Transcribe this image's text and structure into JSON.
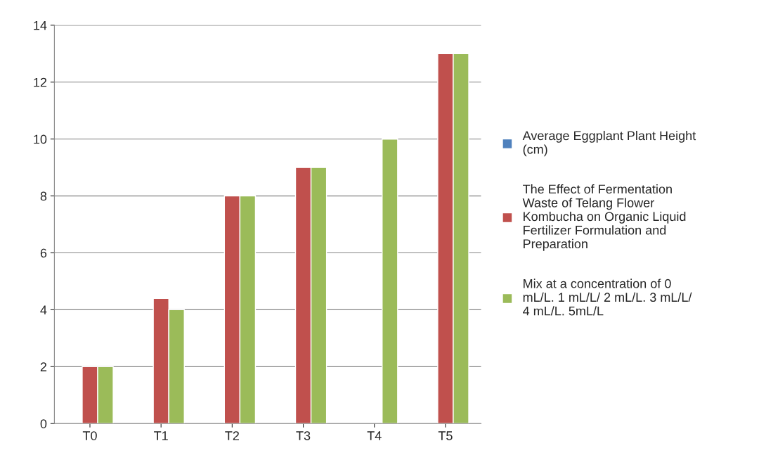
{
  "chart_data": {
    "type": "bar",
    "categories": [
      "T0",
      "T1",
      "T2",
      "T3",
      "T4",
      "T5"
    ],
    "series": [
      {
        "name": "Average Eggplant Plant Height (cm)",
        "color": "#4f81bd",
        "values": [
          null,
          null,
          null,
          null,
          null,
          null
        ]
      },
      {
        "name": "The Effect of Fermentation Waste of Telang Flower Kombucha on Organic Liquid Fertilizer Formulation and Preparation",
        "color": "#c0504d",
        "values": [
          2,
          4.4,
          8,
          9,
          null,
          13
        ]
      },
      {
        "name": "Mix at a concentration of 0 mL/L. 1 mL/L/ 2 mL/L. 3 mL/L/ 4 mL/L. 5mL/L",
        "color": "#9bbb59",
        "values": [
          2,
          4,
          8,
          9,
          10,
          13
        ]
      }
    ],
    "ylim": [
      0,
      14
    ],
    "yticks": [
      0,
      2,
      4,
      6,
      8,
      10,
      12,
      14
    ],
    "grid": "y",
    "legend": "right"
  }
}
